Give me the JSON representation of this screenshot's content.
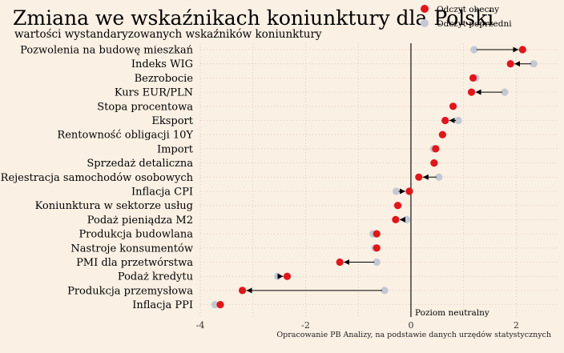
{
  "chart_data": {
    "type": "dot",
    "title": "Zmiana we wskaźnikach koniunktury dla Polski",
    "subtitle": "wartości wystandaryzowanych wskaźników koniunktury",
    "legend": {
      "position": "top-right",
      "current": {
        "label": "Odczyt obecny",
        "color": "#e0161b"
      },
      "previous": {
        "label": "Odczyt poprzedni",
        "color": "#c4c8d4"
      }
    },
    "xlim": [
      -4,
      2.8
    ],
    "xticks": [
      -4,
      -2,
      0,
      2
    ],
    "zero_line_label": "Poziom neutralny",
    "source": "Opracowanie PB Analizy, na podstawie danych urzędów statystycznych",
    "categories": [
      "Pozwolenia na budowę mieszkań",
      "Indeks WIG",
      "Bezrobocie",
      "Kurs EUR/PLN",
      "Stopa procentowa",
      "Eksport",
      "Rentowność obligacji 10Y",
      "Import",
      "Sprzedaż detaliczna",
      "Rejestracja samochodów osobowych",
      "Inflacja CPI",
      "Koniunktura w sektorze usług",
      "Podaż pieniądza M2",
      "Produkcja budowlana",
      "Nastroje konsumentów",
      "PMI dla przetwórstwa",
      "Podaż kredytu",
      "Produkcja przemysłowa",
      "Inflacja PPI"
    ],
    "series": [
      {
        "name": "Odczyt obecny",
        "values": [
          2.12,
          1.89,
          1.18,
          1.15,
          0.8,
          0.65,
          0.6,
          0.47,
          0.44,
          0.15,
          -0.03,
          -0.25,
          -0.29,
          -0.65,
          -0.65,
          -1.35,
          -2.35,
          -3.2,
          -3.62
        ]
      },
      {
        "name": "Odczyt poprzedni",
        "values": [
          1.2,
          2.33,
          1.23,
          1.78,
          0.8,
          0.9,
          0.6,
          0.43,
          0.44,
          0.53,
          -0.28,
          -0.25,
          -0.08,
          -0.72,
          -0.68,
          -0.65,
          -2.53,
          -0.5,
          -3.72
        ]
      }
    ]
  }
}
